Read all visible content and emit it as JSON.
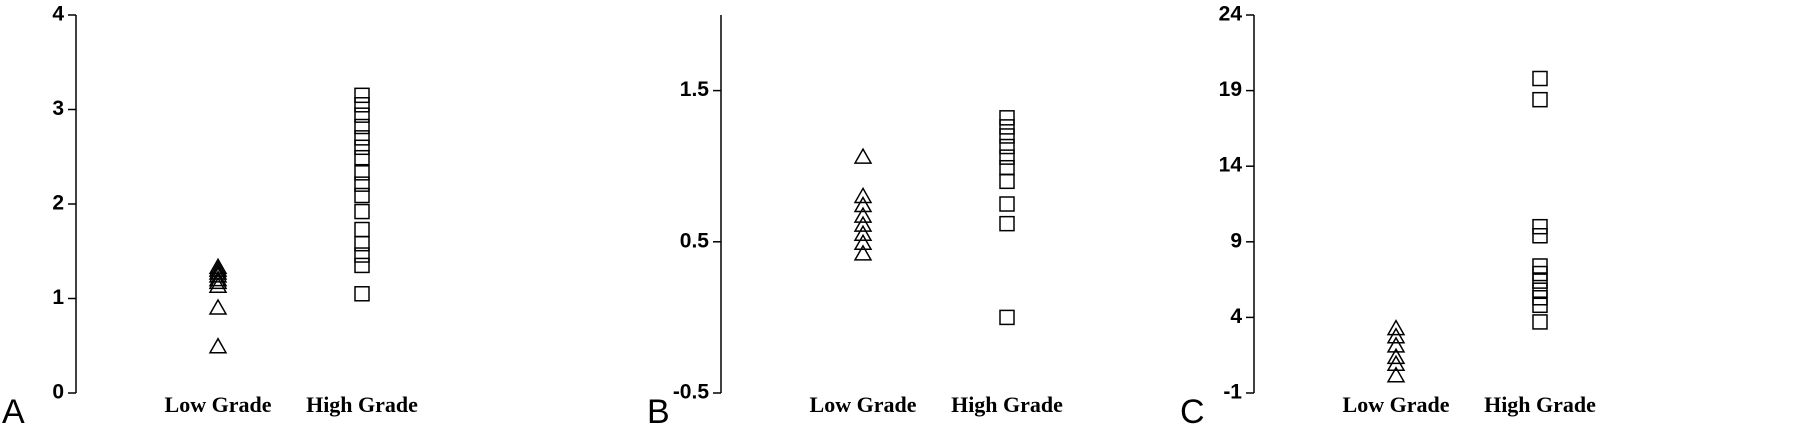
{
  "chart_data": [
    {
      "type": "strip",
      "label": "A",
      "categories": [
        "Low Grade",
        "High Grade"
      ],
      "series": [
        {
          "marker": "triangle",
          "color": "#000000",
          "values": [
            1.33,
            1.3,
            1.27,
            1.24,
            1.2,
            1.17,
            1.13,
            0.9,
            0.49
          ]
        },
        {
          "marker": "square",
          "color": "#000000",
          "values": [
            3.15,
            3.05,
            2.94,
            2.82,
            2.7,
            2.6,
            2.49,
            2.33,
            2.21,
            2.09,
            1.92,
            1.73,
            1.58,
            1.46,
            1.35,
            1.05
          ]
        }
      ],
      "ylim": [
        0,
        4
      ],
      "yticks": [
        0,
        1,
        2,
        3,
        4
      ]
    },
    {
      "type": "strip",
      "label": "B",
      "categories": [
        "Low Grade",
        "High Grade"
      ],
      "series": [
        {
          "marker": "triangle",
          "color": "#000000",
          "values": [
            1.06,
            0.8,
            0.74,
            0.67,
            0.61,
            0.55,
            0.49,
            0.42
          ]
        },
        {
          "marker": "square",
          "color": "#000000",
          "values": [
            1.32,
            1.26,
            1.2,
            1.13,
            1.06,
            0.99,
            0.9,
            0.75,
            0.62,
            0.0
          ]
        }
      ],
      "ylim": [
        -0.5,
        2
      ],
      "yticks": [
        -0.5,
        0.5,
        1.5
      ]
    },
    {
      "type": "strip",
      "label": "C",
      "categories": [
        "Low Grade",
        "High Grade"
      ],
      "series": [
        {
          "marker": "triangle",
          "color": "#000000",
          "values": [
            3.26,
            2.72,
            2.12,
            1.36,
            0.9,
            0.14
          ]
        },
        {
          "marker": "square",
          "color": "#000000",
          "values": [
            19.8,
            18.4,
            10.0,
            9.4,
            7.4,
            6.9,
            6.4,
            5.8,
            5.3,
            4.8,
            3.7
          ]
        }
      ],
      "ylim": [
        -1,
        24
      ],
      "yticks": [
        -1,
        4,
        9,
        14,
        19,
        24
      ]
    }
  ]
}
